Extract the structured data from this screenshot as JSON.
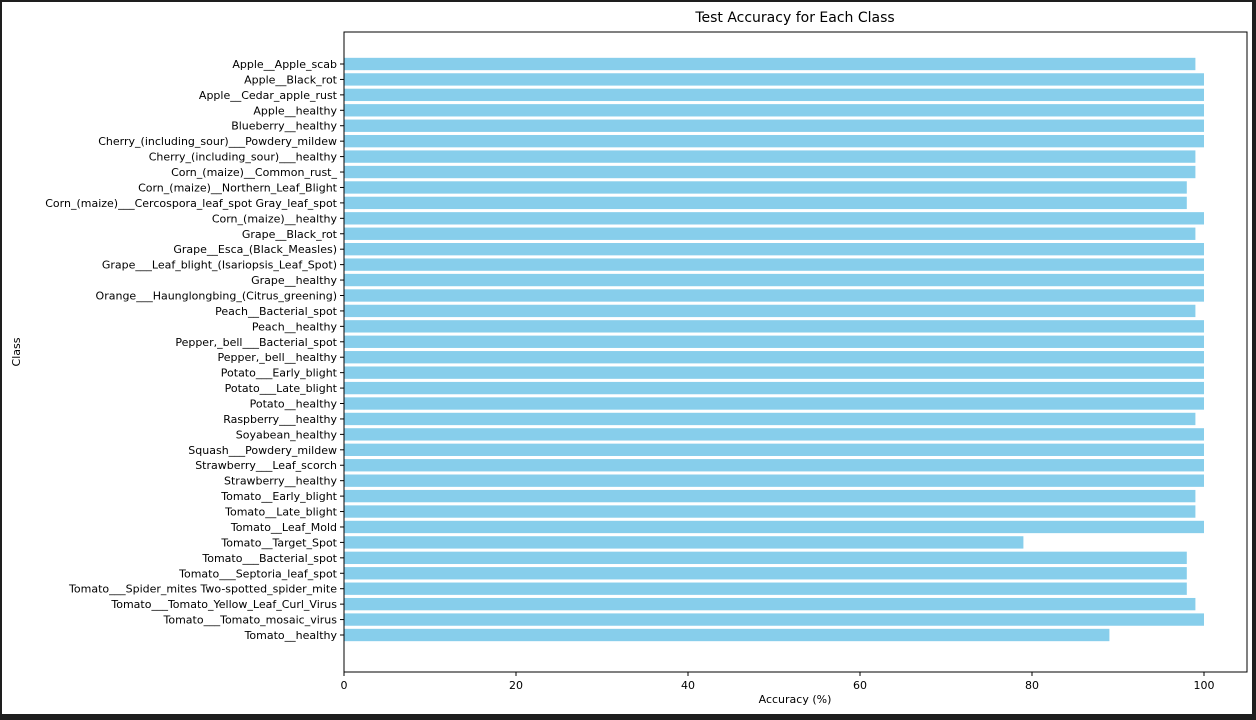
{
  "chart_data": {
    "type": "bar",
    "orientation": "horizontal",
    "title": "Test Accuracy for Each Class",
    "xlabel": "Accuracy (%)",
    "ylabel": "Class",
    "xlim": [
      0,
      105
    ],
    "xticks": [
      0,
      20,
      40,
      60,
      80,
      100
    ],
    "grid": false,
    "bar_color": "#87ceeb",
    "categories": [
      "Apple__Apple_scab",
      "Apple__Black_rot",
      "Apple__Cedar_apple_rust",
      "Apple__healthy",
      "Blueberry__healthy",
      "Cherry_(including_sour)___Powdery_mildew",
      "Cherry_(including_sour)___healthy",
      "Corn_(maize)__Common_rust_",
      "Corn_(maize)__Northern_Leaf_Blight",
      "Corn_(maize)___Cercospora_leaf_spot Gray_leaf_spot",
      "Corn_(maize)__healthy",
      "Grape__Black_rot",
      "Grape__Esca_(Black_Measles)",
      "Grape___Leaf_blight_(Isariopsis_Leaf_Spot)",
      "Grape__healthy",
      "Orange___Haunglongbing_(Citrus_greening)",
      "Peach__Bacterial_spot",
      "Peach__healthy",
      "Pepper,_bell___Bacterial_spot",
      "Pepper,_bell__healthy",
      "Potato___Early_blight",
      "Potato___Late_blight",
      "Potato__healthy",
      "Raspberry___healthy",
      "Soyabean_healthy",
      "Squash___Powdery_mildew",
      "Strawberry___Leaf_scorch",
      "Strawberry__healthy",
      "Tomato__Early_blight",
      "Tomato__Late_blight",
      "Tomato__Leaf_Mold",
      "Tomato__Target_Spot",
      "Tomato___Bacterial_spot",
      "Tomato___Septoria_leaf_spot",
      "Tomato___Spider_mites Two-spotted_spider_mite",
      "Tomato___Tomato_Yellow_Leaf_Curl_Virus",
      "Tomato___Tomato_mosaic_virus",
      "Tomato__healthy"
    ],
    "values": [
      99,
      100,
      100,
      100,
      100,
      100,
      99,
      99,
      98,
      98,
      100,
      99,
      100,
      100,
      100,
      100,
      99,
      100,
      100,
      100,
      100,
      100,
      100,
      99,
      100,
      100,
      100,
      100,
      99,
      99,
      100,
      79,
      98,
      98,
      98,
      99,
      100,
      89
    ]
  }
}
